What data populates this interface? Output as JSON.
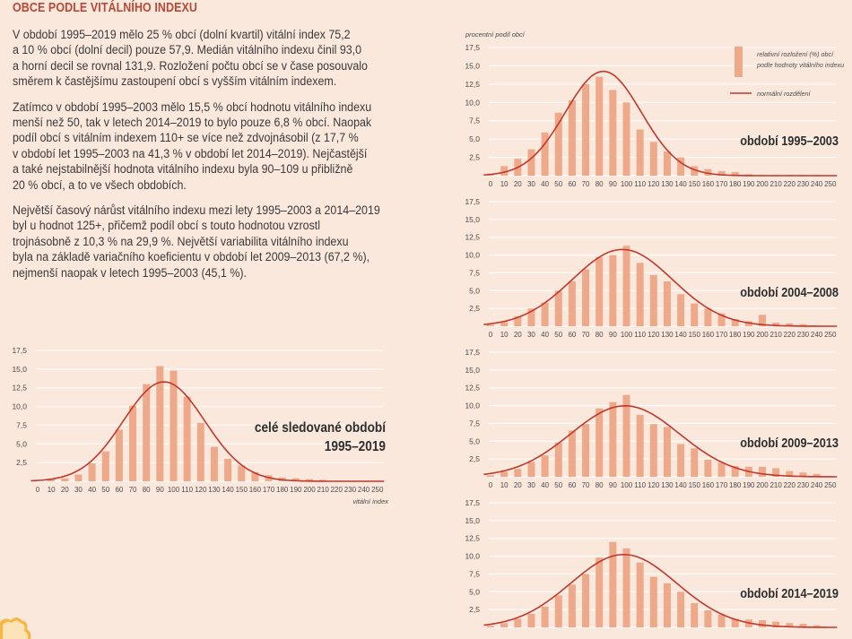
{
  "heading": "OBCE PODLE VITÁLNÍHO INDEXU",
  "paragraphs": [
    {
      "lines": [
        "V období 1995–2019 mělo 25 % obcí (dolní kvartil) vitální index 75,2",
        "a 10 % obcí (dolní decil) pouze 57,9. Medián vitálního indexu činil 93,0",
        "a horní decil se rovnal 131,9. Rozložení počtu obcí se v čase posouvalo",
        "směrem k častějšímu zastoupení obcí s vyšším vitálním indexem."
      ]
    },
    {
      "lines": [
        "Zatímco v období 1995–2003 mělo 15,5 % obcí hodnotu vitálního indexu",
        "menší než 50, tak v letech 2014–2019 to bylo pouze 6,8 % obcí. Naopak",
        "podíl obcí s vitálním indexem 110+ se více než zdvojnásobil (z 17,7 %",
        "v období let 1995–2003 na 41,3 % v období let 2014–2019). Nejčastější",
        "a také nejstabilnější hodnota vitálního indexu byla 90–109 u přibližně",
        "20 % obcí, a to ve všech obdobích."
      ]
    },
    {
      "lines": [
        "Největší časový nárůst vitálního indexu mezi lety 1995–2003 a 2014–2019",
        "byl u hodnot 125+, přičemž podíl obcí s touto hodnotou vzrostl",
        "trojnásobně z 10,3 % na 29,9 %. Největší variabilita vitálního indexu",
        "byla na základě  variačního koeficientu v období let 2009–2013 (67,2 %),",
        "nejmenší naopak v letech 1995–2003 (45,1 %)."
      ]
    }
  ],
  "colors": {
    "background": "#fbe8dc",
    "bar": "#eea88a",
    "curve": "#c0392b",
    "heading": "#b44a37",
    "grid": "#ffffff",
    "axis_text": "#4a4a4a"
  },
  "legend": {
    "bar_label_line1": "relativní rozložení (%) obcí",
    "bar_label_line2": "podle hodnoty vitálního indexu",
    "curve_label": "normální rozdělení"
  },
  "chart_data": [
    {
      "id": "total",
      "type": "bar",
      "title_lines": [
        "celé sledované období",
        "1995–2019"
      ],
      "xlabel": "vitální index",
      "ylabel": "",
      "x": [
        0,
        10,
        20,
        30,
        40,
        50,
        60,
        70,
        80,
        90,
        100,
        110,
        120,
        130,
        140,
        150,
        160,
        170,
        180,
        190,
        200,
        210,
        220,
        230,
        240,
        250
      ],
      "x_tick_labels": [
        "0",
        "10",
        "20",
        "30",
        "40",
        "50",
        "60",
        "70",
        "80",
        "90",
        "100",
        "110",
        "120",
        "130",
        "140",
        "150",
        "160",
        "170",
        "180",
        "190",
        "200",
        "210",
        "220",
        "230",
        "240",
        "250"
      ],
      "values": [
        0,
        0.2,
        0.4,
        0.9,
        2.4,
        4.0,
        6.9,
        10.1,
        13.0,
        15.4,
        14.8,
        11.3,
        7.8,
        4.6,
        3.0,
        2.1,
        1.2,
        0.8,
        0.5,
        0.4,
        0.3,
        0.2,
        0,
        0,
        0,
        0
      ],
      "normal_curve": {
        "mean": 93,
        "sd": 30
      },
      "yticks": [
        "2,5",
        "5,0",
        "7,5",
        "10,0",
        "12,5",
        "15,0",
        "17,5"
      ],
      "ylim": [
        0,
        17.5
      ],
      "grid": true
    },
    {
      "id": "p1995",
      "type": "bar",
      "title_lines": [
        "období 1995–2003"
      ],
      "ylabel": "procentní podíl obcí",
      "xlabel": "",
      "x": [
        0,
        10,
        20,
        30,
        40,
        50,
        60,
        70,
        80,
        90,
        100,
        110,
        120,
        130,
        140,
        150,
        160,
        170,
        180,
        190,
        200,
        210,
        220,
        230,
        240,
        250
      ],
      "x_tick_labels": [
        "0",
        "10",
        "20",
        "30",
        "40",
        "50",
        "60",
        "70",
        "80",
        "90",
        "100",
        "110",
        "120",
        "130",
        "140",
        "150",
        "160",
        "170",
        "180",
        "190",
        "200",
        "210",
        "220",
        "230",
        "240",
        "250"
      ],
      "values": [
        0.1,
        1.3,
        2.3,
        3.6,
        5.9,
        8.6,
        10.3,
        12.5,
        13.5,
        11.7,
        10.0,
        6.3,
        4.6,
        3.3,
        2.5,
        1.3,
        0.9,
        0.6,
        0.5,
        0.2,
        0.1,
        0.1,
        0.1,
        0.1,
        0.1,
        0
      ],
      "normal_curve": {
        "mean": 83,
        "sd": 28
      },
      "yticks": [
        "2,5",
        "5,0",
        "7,5",
        "10,0",
        "12,5",
        "15,0",
        "17,5"
      ],
      "ylim": [
        0,
        17.5
      ],
      "grid": true
    },
    {
      "id": "p2004",
      "type": "bar",
      "title_lines": [
        "období 2004–2008"
      ],
      "ylabel": "",
      "xlabel": "",
      "x": [
        0,
        10,
        20,
        30,
        40,
        50,
        60,
        70,
        80,
        90,
        100,
        110,
        120,
        130,
        140,
        150,
        160,
        170,
        180,
        190,
        200,
        210,
        220,
        230,
        240,
        250
      ],
      "x_tick_labels": [
        "0",
        "10",
        "20",
        "30",
        "40",
        "50",
        "60",
        "70",
        "80",
        "90",
        "100",
        "110",
        "120",
        "130",
        "140",
        "150",
        "160",
        "170",
        "180",
        "190",
        "200",
        "210",
        "220",
        "230",
        "240",
        "250"
      ],
      "values": [
        0.2,
        0.6,
        1.4,
        2.5,
        3.3,
        5.0,
        6.3,
        8.0,
        9.7,
        10.0,
        11.3,
        8.9,
        7.2,
        6.3,
        4.5,
        3.2,
        2.5,
        1.8,
        1.0,
        0.7,
        1.6,
        0.5,
        0.4,
        0.3,
        0.1,
        0
      ],
      "normal_curve": {
        "mean": 97,
        "sd": 37
      },
      "yticks": [
        "2,5",
        "5,0",
        "7,5",
        "10,0",
        "12,5",
        "15,0",
        "17,5"
      ],
      "ylim": [
        0,
        17.5
      ],
      "grid": true
    },
    {
      "id": "p2009",
      "type": "bar",
      "title_lines": [
        "období 2009–2013"
      ],
      "ylabel": "",
      "xlabel": "",
      "x": [
        0,
        10,
        20,
        30,
        40,
        50,
        60,
        70,
        80,
        90,
        100,
        110,
        120,
        130,
        140,
        150,
        160,
        170,
        180,
        190,
        200,
        210,
        220,
        230,
        240,
        250
      ],
      "x_tick_labels": [
        "0",
        "10",
        "20",
        "30",
        "40",
        "50",
        "60",
        "70",
        "80",
        "90",
        "100",
        "110",
        "120",
        "130",
        "140",
        "150",
        "160",
        "170",
        "180",
        "190",
        "200",
        "210",
        "220",
        "230",
        "240",
        "250"
      ],
      "values": [
        0.2,
        0.7,
        1.1,
        2.1,
        3.0,
        4.8,
        6.5,
        7.4,
        9.6,
        10.5,
        11.5,
        8.7,
        7.4,
        7.0,
        4.6,
        4.0,
        2.4,
        2.0,
        1.5,
        1.4,
        1.4,
        1.2,
        0.8,
        0.6,
        0.4,
        0
      ],
      "normal_curve": {
        "mean": 99,
        "sd": 40
      },
      "yticks": [
        "2,5",
        "5,0",
        "7,5",
        "10,0",
        "12,5",
        "15,0",
        "17,5"
      ],
      "ylim": [
        0,
        17.5
      ],
      "grid": true
    },
    {
      "id": "p2014",
      "type": "bar",
      "title_lines": [
        "období 2014–2019"
      ],
      "ylabel": "",
      "xlabel": "",
      "x": [
        0,
        10,
        20,
        30,
        40,
        50,
        60,
        70,
        80,
        90,
        100,
        110,
        120,
        130,
        140,
        150,
        160,
        170,
        180,
        190,
        200,
        210,
        220,
        230,
        240,
        250
      ],
      "x_tick_labels": [],
      "values": [
        0.2,
        0.6,
        1.2,
        1.9,
        2.9,
        4.5,
        6.0,
        7.5,
        9.8,
        12.0,
        11.1,
        9.1,
        7.1,
        6.2,
        5.0,
        3.4,
        2.4,
        1.8,
        1.2,
        1.1,
        1.0,
        0.8,
        0.6,
        0.5,
        0.3,
        0
      ],
      "normal_curve": {
        "mean": 98,
        "sd": 39
      },
      "yticks": [
        "2,5",
        "5,0",
        "7,5",
        "10,0",
        "12,5",
        "15,0",
        "17,5"
      ],
      "ylim": [
        0,
        17.5
      ],
      "grid": true
    }
  ]
}
